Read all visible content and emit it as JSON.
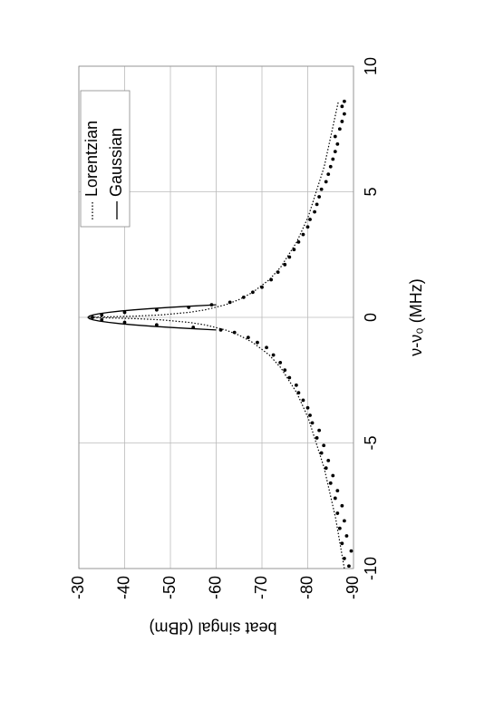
{
  "chart_data": {
    "type": "scatter",
    "x_label": "ν-ν₀ (MHz)",
    "y_label": "beat singal (dBm)",
    "xlim": [
      -10,
      10
    ],
    "xticks": [
      -10,
      -5,
      0,
      5,
      10
    ],
    "ylim": [
      -90,
      -30
    ],
    "yticks": [
      -30,
      -40,
      -50,
      -60,
      -70,
      -80,
      -90
    ],
    "grid": true,
    "legend": "upper right",
    "series": [
      {
        "style": "marker",
        "color": "#000000",
        "x": [
          -9.9,
          -9.6,
          -9.3,
          -9.0,
          -8.7,
          -8.4,
          -8.1,
          -7.8,
          -7.5,
          -7.2,
          -6.9,
          -6.6,
          -6.3,
          -6.0,
          -5.7,
          -5.4,
          -5.1,
          -4.8,
          -4.5,
          -4.2,
          -3.9,
          -3.6,
          -3.3,
          -3.0,
          -2.7,
          -2.4,
          -2.1,
          -1.8,
          -1.5,
          -1.2,
          -1.0,
          -0.8,
          -0.6,
          -0.5,
          -0.4,
          -0.3,
          -0.2,
          -0.1,
          0,
          0.1,
          0.2,
          0.3,
          0.4,
          0.5,
          0.6,
          0.8,
          1.0,
          1.2,
          1.5,
          1.8,
          2.1,
          2.4,
          2.7,
          3.0,
          3.3,
          3.6,
          3.9,
          4.2,
          4.5,
          4.8,
          5.1,
          5.4,
          5.7,
          6.0,
          6.3,
          6.6,
          6.9,
          7.2,
          7.5,
          7.8,
          8.1,
          8.4,
          8.6
        ],
        "values": [
          -89,
          -88,
          -89.5,
          -87.5,
          -88.5,
          -87,
          -88,
          -86.5,
          -87.5,
          -86,
          -86.5,
          -85,
          -85.5,
          -84,
          -84.5,
          -83,
          -83.5,
          -82,
          -82.5,
          -81,
          -80.5,
          -80,
          -79,
          -78,
          -77.5,
          -76,
          -75,
          -74,
          -72.5,
          -71,
          -69,
          -67,
          -64,
          -61,
          -55,
          -47,
          -40,
          -35,
          -33,
          -35,
          -40,
          -47,
          -54,
          -59,
          -63,
          -66,
          -68,
          -70,
          -72,
          -73.5,
          -75,
          -76,
          -77,
          -78,
          -79,
          -80,
          -80.5,
          -81.5,
          -82,
          -82.5,
          -83,
          -84,
          -84.5,
          -85,
          -85.5,
          -86,
          -86.5,
          -86,
          -87,
          -87.5,
          -88,
          -87.5,
          -88
        ]
      },
      {
        "name": "Lorentzian",
        "style": "dotted",
        "color": "#000000",
        "x": [
          -10,
          -8,
          -6,
          -4,
          -3,
          -2,
          -1.5,
          -1,
          -0.7,
          -0.5,
          -0.3,
          -0.2,
          -0.1,
          -0.05,
          -0.02,
          0,
          0.02,
          0.05,
          0.1,
          0.2,
          0.3,
          0.5,
          0.7,
          1,
          1.5,
          2,
          3,
          4,
          6,
          8.6
        ],
        "values": [
          -88,
          -86.1,
          -83.6,
          -80.1,
          -77.6,
          -74.1,
          -71.6,
          -68,
          -64.9,
          -62,
          -57.6,
          -54.1,
          -48.1,
          -42.4,
          -36.1,
          -32,
          -36.1,
          -42.4,
          -48.1,
          -54.1,
          -57.6,
          -62,
          -64.9,
          -68,
          -71.6,
          -74.1,
          -77.6,
          -80.1,
          -83.6,
          -86.7
        ]
      },
      {
        "name": "Gaussian",
        "style": "solid",
        "color": "#000000",
        "x": [
          -0.5,
          -0.45,
          -0.4,
          -0.35,
          -0.3,
          -0.25,
          -0.2,
          -0.15,
          -0.1,
          -0.05,
          0,
          0.05,
          0.1,
          0.15,
          0.2,
          0.25,
          0.3,
          0.35,
          0.4,
          0.45,
          0.5
        ],
        "values": [
          -60,
          -54.68,
          -49.92,
          -45.72,
          -42.08,
          -39,
          -36.48,
          -34.52,
          -33.12,
          -32.28,
          -32,
          -32.28,
          -33.12,
          -34.52,
          -36.48,
          -39,
          -42.08,
          -45.72,
          -49.92,
          -54.68,
          -60
        ]
      }
    ]
  }
}
